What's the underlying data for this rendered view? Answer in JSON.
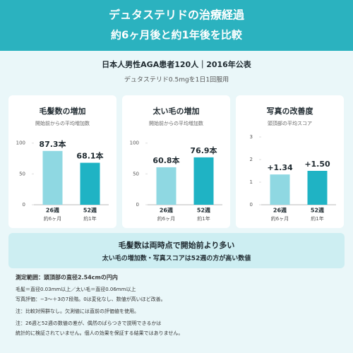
{
  "header": {
    "title": "デュタステリドの治療経過",
    "subtitle": "約6ヶ月後と約1年後を比較"
  },
  "study": {
    "population": "日本人男性AGA患者120人｜2016年公表",
    "dosage": "デュタステリド0.5mgを1日1回服用"
  },
  "chart_data": [
    {
      "type": "bar",
      "title": "毛髪数の増加",
      "subtitle": "開始前からの平均増加数",
      "categories": [
        "26週",
        "52週"
      ],
      "category_sublabels": [
        "約6ヶ月",
        "約1年"
      ],
      "values": [
        87.3,
        68.1
      ],
      "value_labels": [
        "87.3本",
        "68.1本"
      ],
      "colors": [
        "#8fd8e2",
        "#1fb3c4"
      ],
      "ylim": [
        0,
        110
      ],
      "yticks": [
        0,
        50,
        100
      ]
    },
    {
      "type": "bar",
      "title": "太い毛の増加",
      "subtitle": "開始前からの平均増加数",
      "categories": [
        "26週",
        "52週"
      ],
      "category_sublabels": [
        "約6ヶ月",
        "約1年"
      ],
      "values": [
        60.8,
        76.9
      ],
      "value_labels": [
        "60.8本",
        "76.9本"
      ],
      "colors": [
        "#8fd8e2",
        "#1fb3c4"
      ],
      "ylim": [
        0,
        110
      ],
      "yticks": [
        0,
        50,
        100
      ]
    },
    {
      "type": "bar",
      "title": "写真の改善度",
      "subtitle": "頭頂部の平均スコア",
      "categories": [
        "26週",
        "52週"
      ],
      "category_sublabels": [
        "約6ヶ月",
        "約1年"
      ],
      "values": [
        1.34,
        1.5
      ],
      "value_labels": [
        "+1.34",
        "+1.50"
      ],
      "colors": [
        "#8fd8e2",
        "#1fb3c4"
      ],
      "ylim": [
        0,
        3
      ],
      "yticks": [
        0,
        1,
        2,
        3
      ]
    }
  ],
  "summary": {
    "headline": "毛髪数は両時点で開始前より多い",
    "detail": "太い毛の増加数・写真スコアは52週の方が高い数値"
  },
  "notes": [
    "測定範囲：頭頂部の直径2.54cmの円内",
    "毛髪＝直径0.03mm以上／太い毛＝直径0.06mm以上",
    "写真評価：−3〜＋3の7段階。0は変化なし、数値が高いほど改善。",
    "注：比較対照群なし。欠測値には直前の評価値を使用。",
    "注：26週と52週の数値の差が、偶然のばらつきで説明できるかは",
    "統計的に検証されていません。個人の効果を保証する結果ではありません。"
  ]
}
